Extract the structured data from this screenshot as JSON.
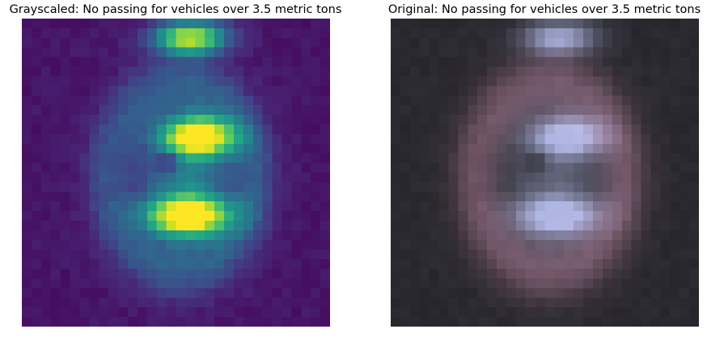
{
  "panels": {
    "left": {
      "title": "Grayscaled: No passing for vehicles over 3.5 metric tons"
    },
    "right": {
      "title": "Original: No passing for vehicles over 3.5 metric tons"
    }
  }
}
